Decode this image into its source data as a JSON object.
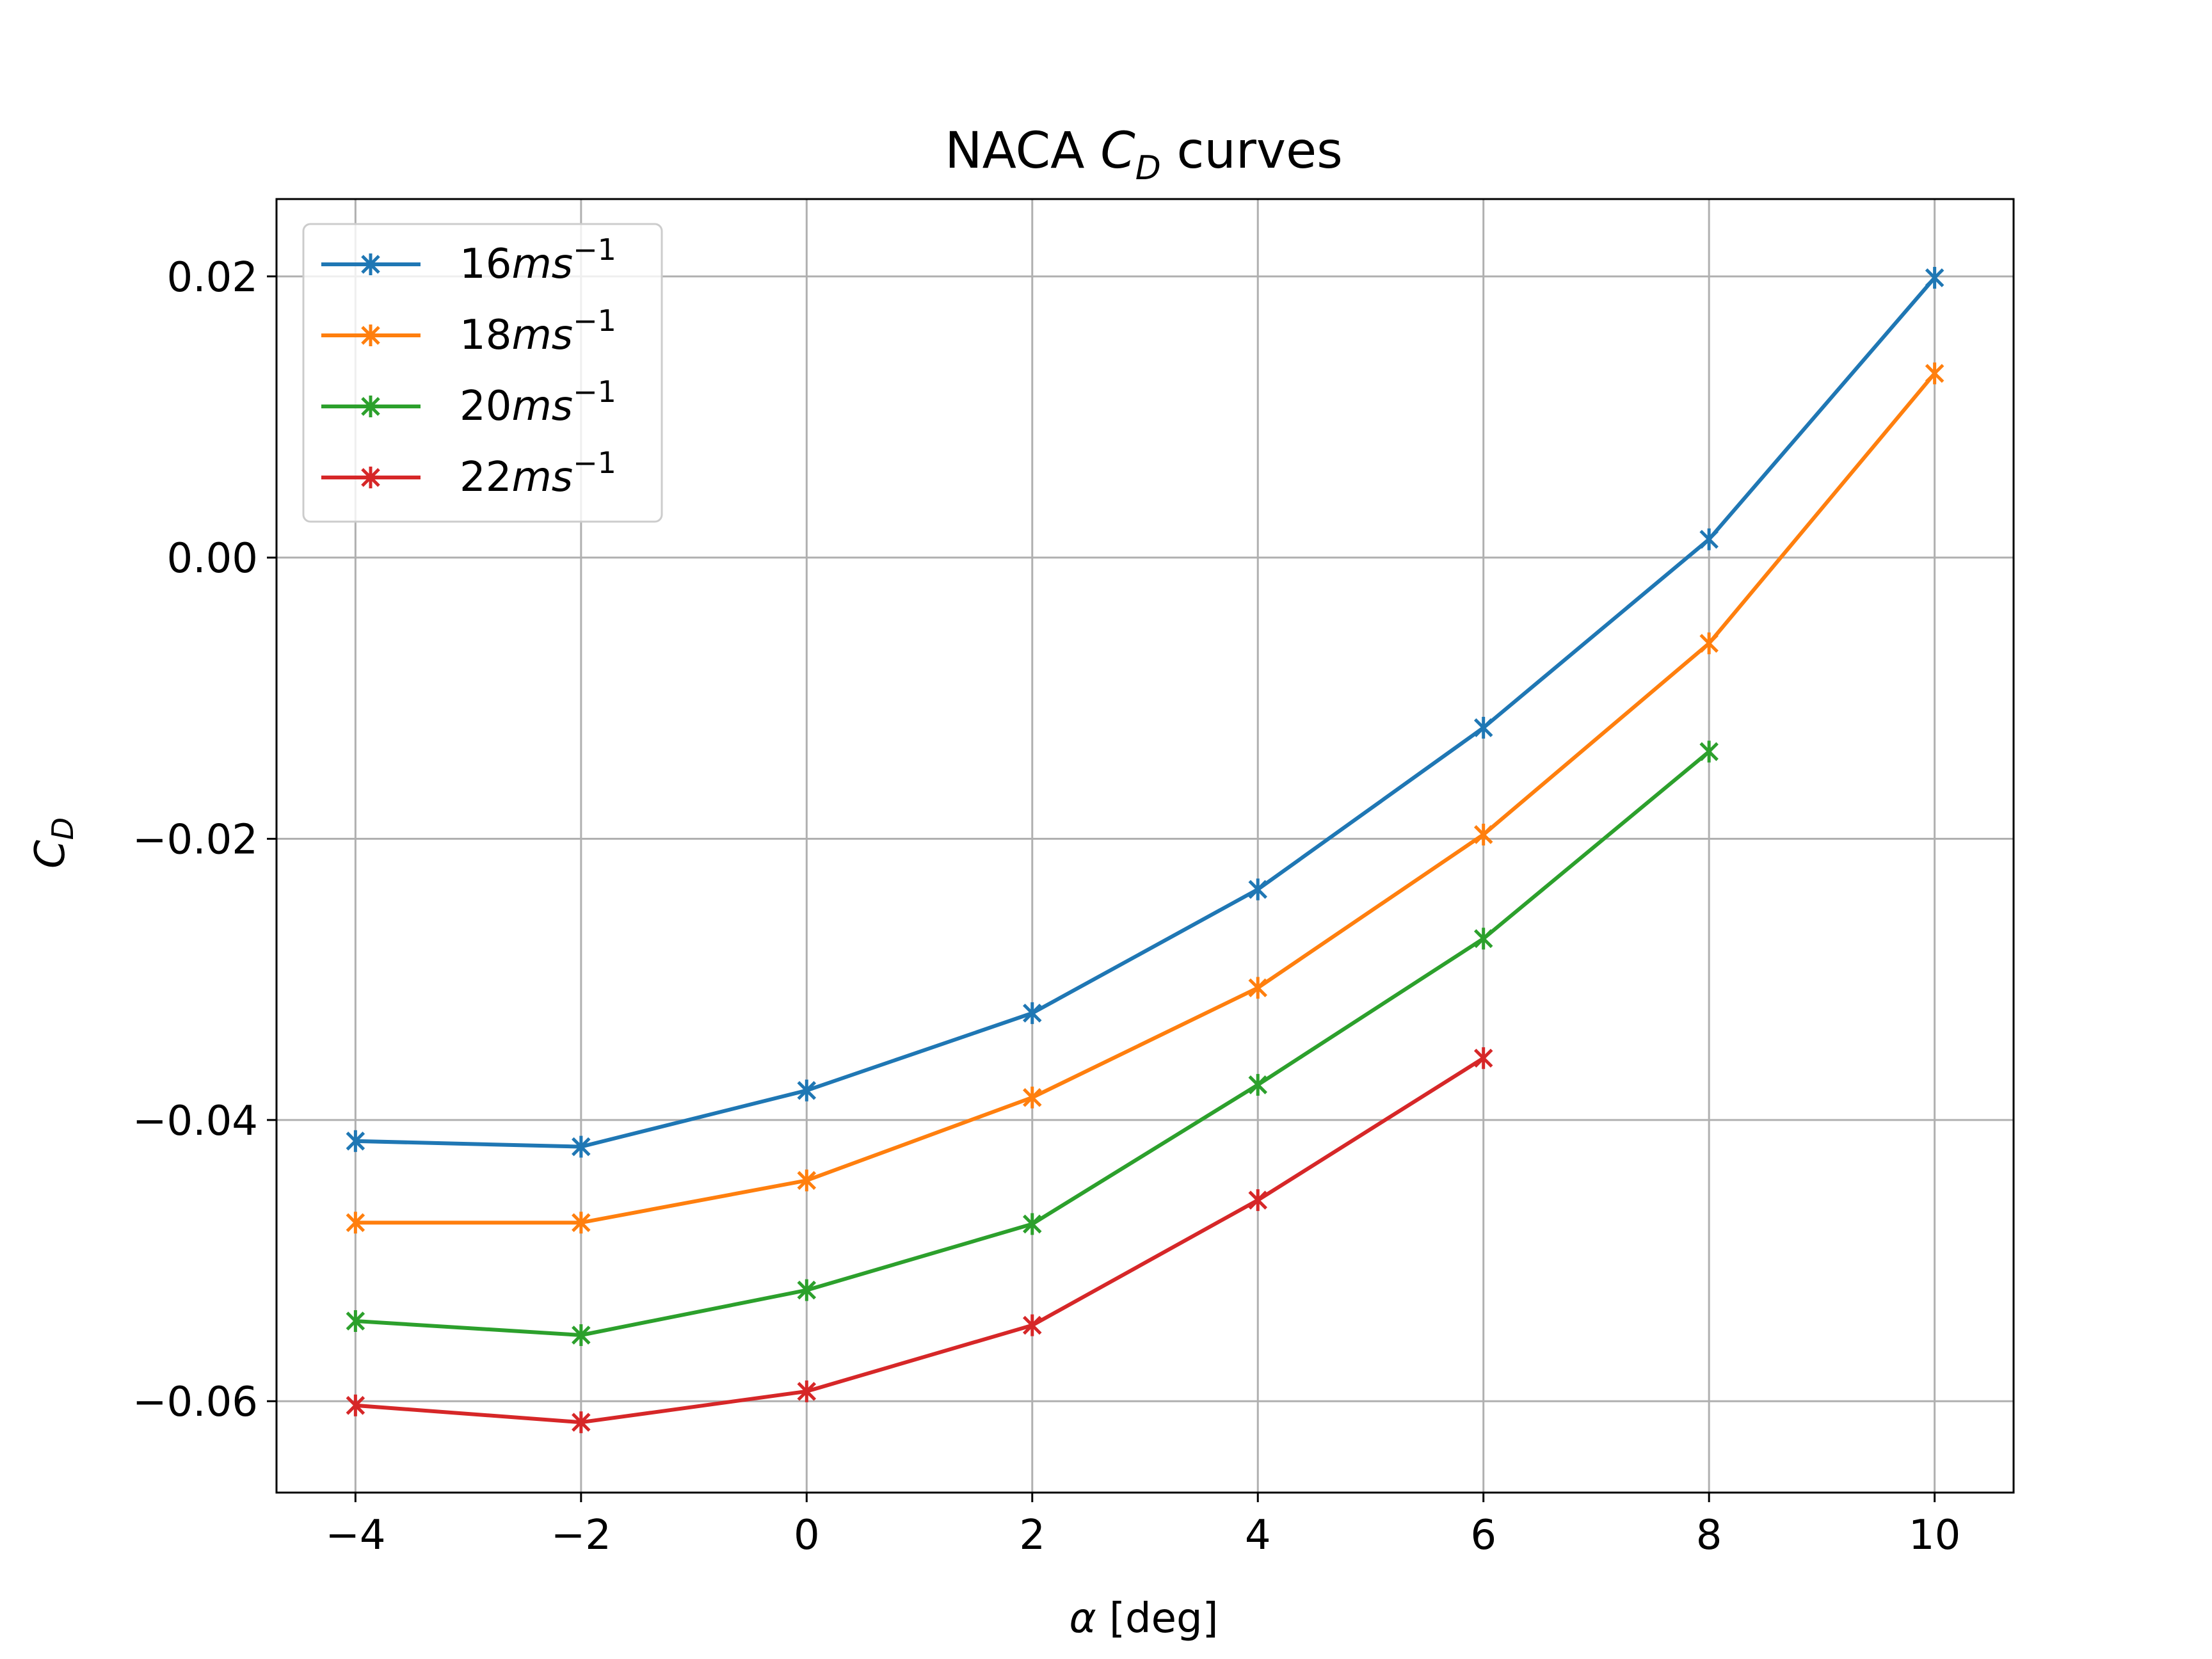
{
  "chart_data": {
    "type": "line",
    "title": "NACA C_D curves",
    "title_parts": {
      "prefix": "NACA ",
      "var": "C",
      "sub": "D",
      "suffix": " curves"
    },
    "xlabel": "α [deg]",
    "xlabel_parts": {
      "var": "α",
      "rest": " [deg]"
    },
    "ylabel": "C_D",
    "ylabel_parts": {
      "var": "C",
      "sub": "D"
    },
    "xlim": [
      -4.7,
      10.7
    ],
    "ylim": [
      -0.0665,
      0.0255
    ],
    "xticks": [
      -4,
      -2,
      0,
      2,
      4,
      6,
      8,
      10
    ],
    "xtick_labels": [
      "−4",
      "−2",
      "0",
      "2",
      "4",
      "6",
      "8",
      "10"
    ],
    "yticks": [
      -0.06,
      -0.04,
      -0.02,
      0.0,
      0.02
    ],
    "ytick_labels": [
      "−0.06",
      "−0.04",
      "−0.02",
      "0.00",
      "0.02"
    ],
    "grid": true,
    "legend_position": "top-left",
    "series": [
      {
        "name": "16ms⁻¹",
        "label_parts": {
          "num": "16",
          "unit": "ms",
          "exp": "−1"
        },
        "color": "#1f77b4",
        "x": [
          -4,
          -2,
          0,
          2,
          4,
          6,
          8,
          10
        ],
        "y": [
          -0.0415,
          -0.0419,
          -0.0379,
          -0.0324,
          -0.0236,
          -0.0121,
          0.0013,
          0.0199
        ]
      },
      {
        "name": "18ms⁻¹",
        "label_parts": {
          "num": "18",
          "unit": "ms",
          "exp": "−1"
        },
        "color": "#ff7f0e",
        "x": [
          -4,
          -2,
          0,
          2,
          4,
          6,
          8,
          10
        ],
        "y": [
          -0.0473,
          -0.0473,
          -0.0443,
          -0.0384,
          -0.0306,
          -0.0197,
          -0.0061,
          0.0131
        ]
      },
      {
        "name": "20ms⁻¹",
        "label_parts": {
          "num": "20",
          "unit": "ms",
          "exp": "−1"
        },
        "color": "#2ca02c",
        "x": [
          -4,
          -2,
          0,
          2,
          4,
          6,
          8
        ],
        "y": [
          -0.0543,
          -0.0553,
          -0.0521,
          -0.0474,
          -0.0375,
          -0.0271,
          -0.0138
        ]
      },
      {
        "name": "22ms⁻¹",
        "label_parts": {
          "num": "22",
          "unit": "ms",
          "exp": "−1"
        },
        "color": "#d62728",
        "x": [
          -4,
          -2,
          0,
          2,
          4,
          6
        ],
        "y": [
          -0.0603,
          -0.0615,
          -0.0593,
          -0.0546,
          -0.0457,
          -0.0356
        ]
      }
    ]
  }
}
